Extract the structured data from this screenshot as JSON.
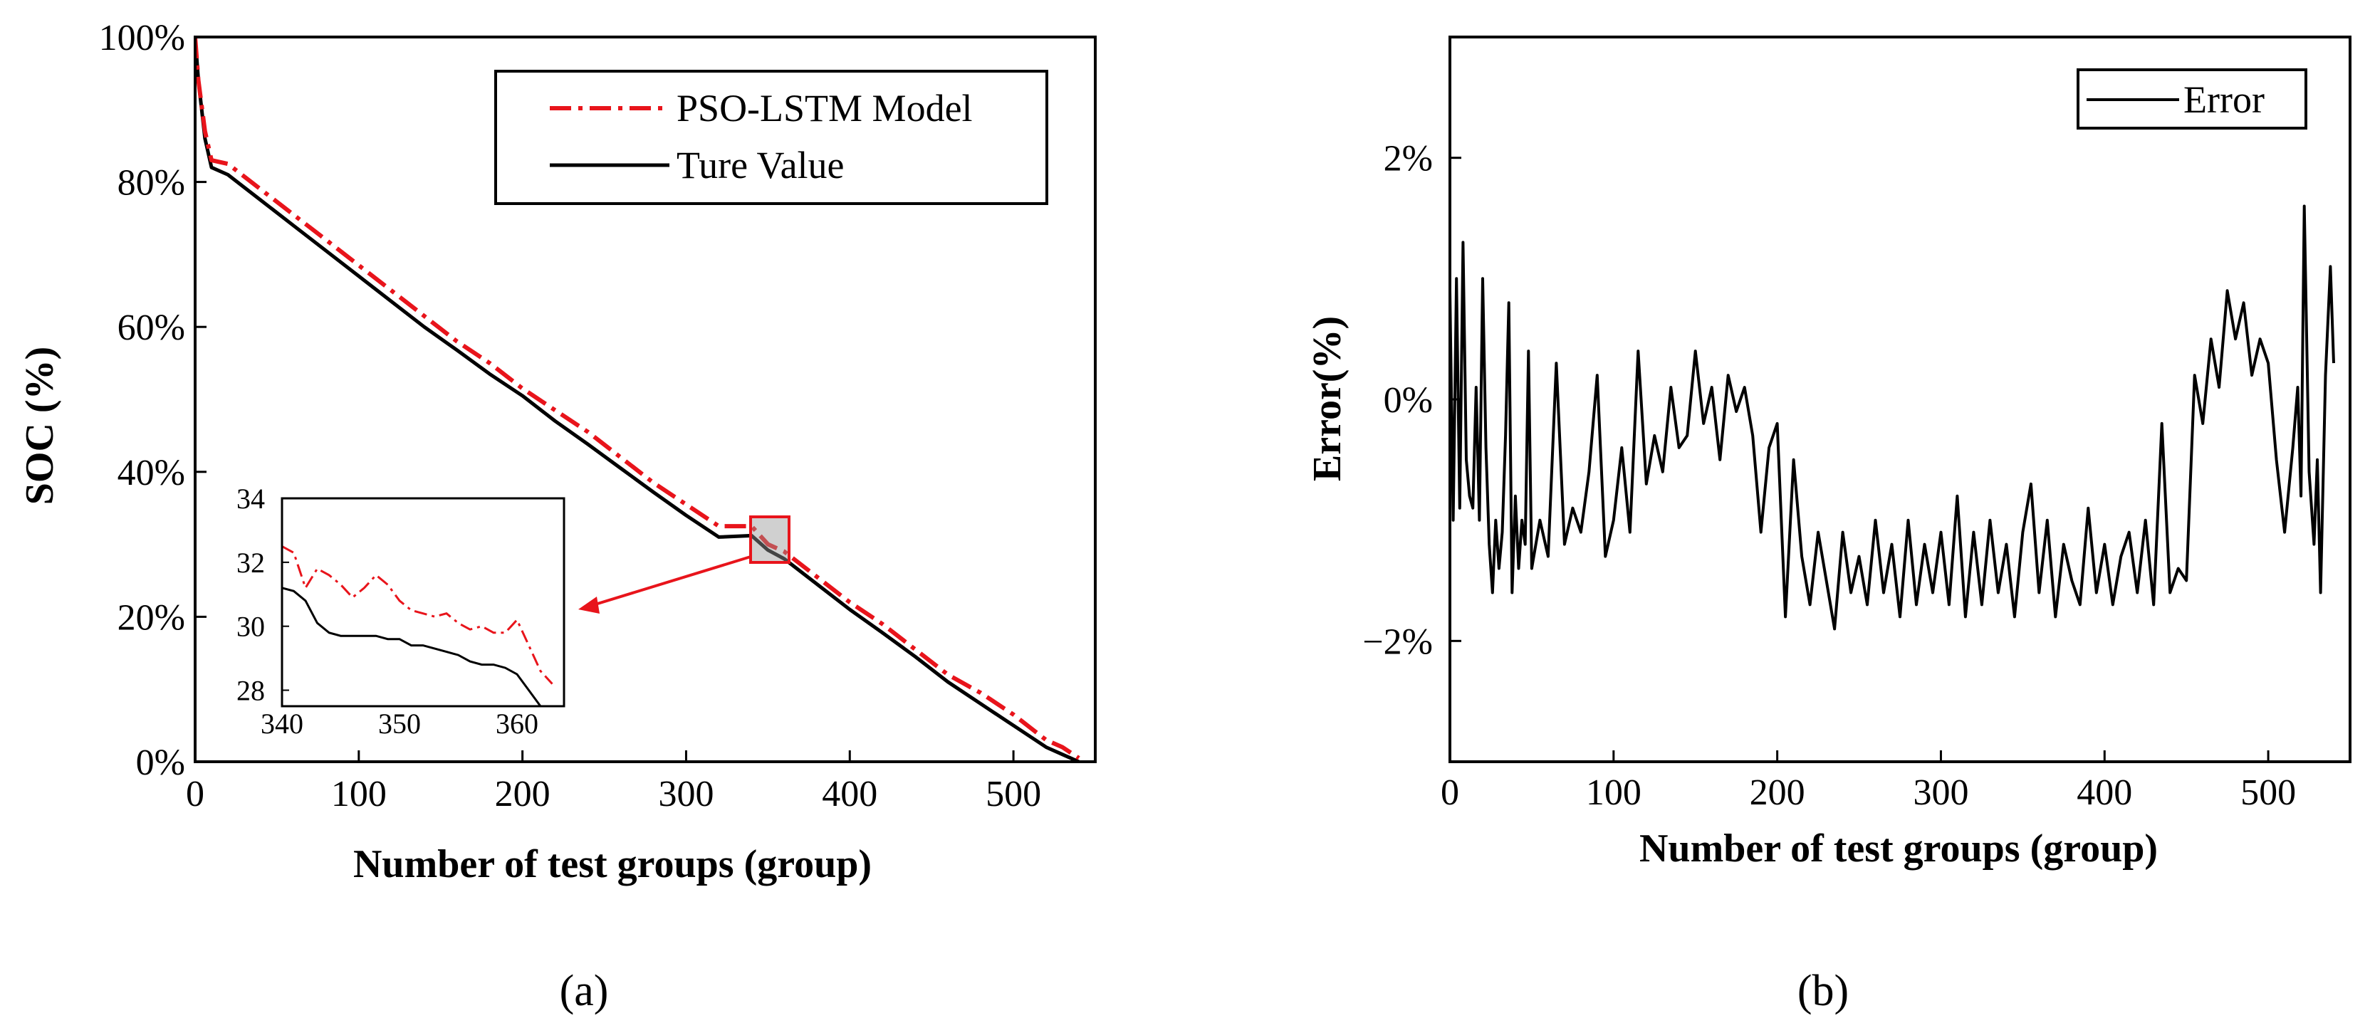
{
  "chart_data": [
    {
      "id": "a",
      "type": "line",
      "caption": "(a)",
      "xlabel": "Number of test groups (group)",
      "ylabel": "SOC (%)",
      "xlim": [
        0,
        550
      ],
      "ylim": [
        0,
        100
      ],
      "x_ticks": [
        0,
        100,
        200,
        300,
        400,
        500
      ],
      "y_ticks": [
        0,
        20,
        40,
        60,
        80,
        100
      ],
      "y_tick_labels": [
        "0%",
        "20%",
        "40%",
        "60%",
        "80%",
        "100%"
      ],
      "legend_position": "top-right",
      "series": [
        {
          "name": "PSO-LSTM Model",
          "color": "#e8141b",
          "style": "dash-dot",
          "x": [
            0,
            2,
            6,
            10,
            20,
            40,
            60,
            80,
            100,
            120,
            140,
            160,
            180,
            200,
            220,
            240,
            260,
            280,
            300,
            320,
            340,
            350,
            360,
            380,
            400,
            420,
            440,
            460,
            480,
            500,
            520,
            530,
            540
          ],
          "y": [
            100,
            94,
            87,
            83,
            82.5,
            79,
            75.5,
            72,
            68.5,
            65,
            61.5,
            58,
            55,
            51.5,
            48.5,
            45.5,
            42,
            38.5,
            35.5,
            32.5,
            32.5,
            30,
            29,
            25.5,
            22,
            19,
            15.5,
            12,
            9.5,
            6.5,
            3,
            2,
            0.5
          ]
        },
        {
          "name": "Ture Value",
          "color": "#000000",
          "style": "solid",
          "x": [
            0,
            2,
            6,
            10,
            20,
            40,
            60,
            80,
            100,
            120,
            140,
            160,
            180,
            200,
            220,
            240,
            260,
            280,
            300,
            320,
            340,
            350,
            360,
            380,
            400,
            420,
            440,
            460,
            480,
            500,
            520,
            530,
            540
          ],
          "y": [
            100,
            94,
            86,
            82,
            81,
            77.5,
            74,
            70.5,
            67,
            63.5,
            60,
            56.8,
            53.5,
            50.5,
            47,
            43.8,
            40.5,
            37.2,
            34,
            31,
            31.2,
            29.2,
            28,
            24.5,
            21,
            17.8,
            14.5,
            11,
            8,
            5,
            2,
            1,
            0
          ]
        }
      ],
      "inset": {
        "xlim": [
          340,
          364
        ],
        "ylim": [
          27.5,
          34
        ],
        "x_ticks": [
          340,
          350,
          360
        ],
        "y_ticks": [
          28,
          30,
          32,
          34
        ],
        "series": [
          {
            "name": "PSO-LSTM Model",
            "x": [
              340,
              341,
              342,
              343,
              344,
              345,
              346,
              347,
              348,
              349,
              350,
              351,
              352,
              353,
              354,
              355,
              356,
              357,
              358,
              359,
              360,
              361,
              362,
              363
            ],
            "y": [
              32.5,
              32.3,
              31.2,
              31.8,
              31.6,
              31.3,
              30.9,
              31.2,
              31.6,
              31.3,
              30.8,
              30.5,
              30.4,
              30.3,
              30.4,
              30.1,
              29.9,
              30.0,
              29.8,
              29.8,
              30.2,
              29.4,
              28.6,
              28.2
            ]
          },
          {
            "name": "Ture Value",
            "x": [
              340,
              341,
              342,
              343,
              344,
              345,
              346,
              347,
              348,
              349,
              350,
              351,
              352,
              353,
              354,
              355,
              356,
              357,
              358,
              359,
              360,
              361,
              362
            ],
            "y": [
              31.2,
              31.1,
              30.8,
              30.1,
              29.8,
              29.7,
              29.7,
              29.7,
              29.7,
              29.6,
              29.6,
              29.4,
              29.4,
              29.3,
              29.2,
              29.1,
              28.9,
              28.8,
              28.8,
              28.7,
              28.5,
              28.0,
              27.5
            ]
          }
        ]
      }
    },
    {
      "id": "b",
      "type": "line",
      "caption": "(b)",
      "xlabel": "Number of test groups (group)",
      "ylabel": "Error(%)",
      "xlim": [
        0,
        550
      ],
      "ylim": [
        -3,
        3
      ],
      "x_ticks": [
        0,
        100,
        200,
        300,
        400,
        500
      ],
      "y_ticks": [
        -2,
        0,
        2
      ],
      "y_tick_labels": [
        "−2%",
        "0%",
        "2%"
      ],
      "legend_position": "top-right",
      "series": [
        {
          "name": "Error",
          "color": "#000000",
          "style": "solid",
          "x": [
            0,
            2,
            4,
            6,
            8,
            10,
            12,
            14,
            16,
            18,
            20,
            22,
            24,
            26,
            28,
            30,
            32,
            34,
            36,
            38,
            40,
            42,
            44,
            46,
            48,
            50,
            55,
            60,
            65,
            70,
            75,
            80,
            85,
            90,
            95,
            100,
            105,
            110,
            115,
            120,
            125,
            130,
            135,
            140,
            145,
            150,
            155,
            160,
            165,
            170,
            175,
            180,
            185,
            190,
            195,
            200,
            205,
            210,
            215,
            220,
            225,
            230,
            235,
            240,
            245,
            250,
            255,
            260,
            265,
            270,
            275,
            280,
            285,
            290,
            295,
            300,
            305,
            310,
            315,
            320,
            325,
            330,
            335,
            340,
            345,
            350,
            355,
            360,
            365,
            370,
            375,
            380,
            385,
            390,
            395,
            400,
            405,
            410,
            415,
            420,
            425,
            430,
            435,
            440,
            445,
            450,
            455,
            460,
            465,
            470,
            475,
            480,
            485,
            490,
            495,
            500,
            505,
            510,
            515,
            518,
            520,
            522,
            525,
            528,
            530,
            532,
            535,
            538,
            540
          ],
          "y": [
            0.9,
            -1.0,
            1.0,
            -0.9,
            1.3,
            -0.5,
            -0.8,
            -0.9,
            0.1,
            -1.0,
            1.0,
            -0.4,
            -1.2,
            -1.6,
            -1.0,
            -1.4,
            -1.1,
            -0.3,
            0.8,
            -1.6,
            -0.8,
            -1.4,
            -1.0,
            -1.2,
            0.4,
            -1.4,
            -1.0,
            -1.3,
            0.3,
            -1.2,
            -0.9,
            -1.1,
            -0.6,
            0.2,
            -1.3,
            -1.0,
            -0.4,
            -1.1,
            0.4,
            -0.7,
            -0.3,
            -0.6,
            0.1,
            -0.4,
            -0.3,
            0.4,
            -0.2,
            0.1,
            -0.5,
            0.2,
            -0.1,
            0.1,
            -0.3,
            -1.1,
            -0.4,
            -0.2,
            -1.8,
            -0.5,
            -1.3,
            -1.7,
            -1.1,
            -1.5,
            -1.9,
            -1.1,
            -1.6,
            -1.3,
            -1.7,
            -1.0,
            -1.6,
            -1.2,
            -1.8,
            -1.0,
            -1.7,
            -1.2,
            -1.6,
            -1.1,
            -1.7,
            -0.8,
            -1.8,
            -1.1,
            -1.7,
            -1.0,
            -1.6,
            -1.2,
            -1.8,
            -1.1,
            -0.7,
            -1.6,
            -1.0,
            -1.8,
            -1.2,
            -1.5,
            -1.7,
            -0.9,
            -1.6,
            -1.2,
            -1.7,
            -1.3,
            -1.1,
            -1.6,
            -1.0,
            -1.7,
            -0.2,
            -1.6,
            -1.4,
            -1.5,
            0.2,
            -0.2,
            0.5,
            0.1,
            0.9,
            0.5,
            0.8,
            0.2,
            0.5,
            0.3,
            -0.5,
            -1.1,
            -0.4,
            0.1,
            -0.8,
            1.6,
            -0.6,
            -1.2,
            -0.5,
            -1.6,
            0.2,
            1.1,
            0.3
          ]
        }
      ]
    }
  ]
}
